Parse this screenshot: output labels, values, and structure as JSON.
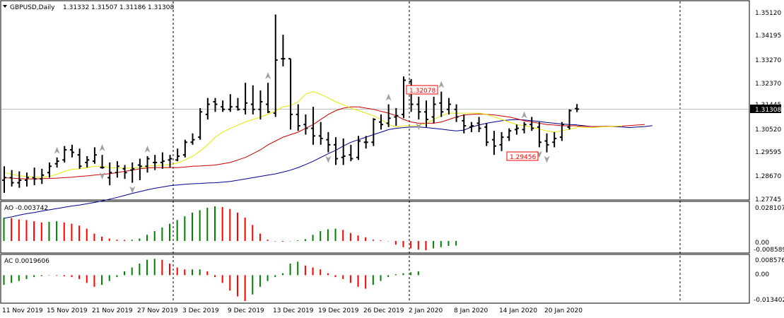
{
  "header": {
    "menu_icon": "triangle-down-icon",
    "symbol": "GBPUSD,Daily",
    "open": "1.31332",
    "high": "1.31507",
    "low": "1.31186",
    "close": "1.31308"
  },
  "price_axis": {
    "labels": [
      "1.35120",
      "1.34195",
      "1.33270",
      "1.32370",
      "1.31445",
      "1.30520",
      "1.29595",
      "1.28670",
      "1.27745"
    ],
    "current_price": "1.31308",
    "current_price_color": "#000000"
  },
  "ao_panel": {
    "label": "AO -0.003742",
    "axis_labels": [
      "0.028107",
      "0.00",
      "-0.008589"
    ],
    "up_color": "#008000",
    "down_color": "#ff0000"
  },
  "ac_panel": {
    "label": "AC 0.0019606",
    "axis_labels": [
      "0.008576",
      "0.00",
      "-0.013402"
    ],
    "up_color": "#008000",
    "down_color": "#ff0000"
  },
  "annotations": {
    "high_label": "1.32078",
    "low_label": "1.29456",
    "color": "#ff0000"
  },
  "time_axis": {
    "labels": [
      "11 Nov 2019",
      "15 Nov 2019",
      "21 Nov 2019",
      "27 Nov 2019",
      "3 Dec 2019",
      "9 Dec 2019",
      "13 Dec 2019",
      "19 Dec 2019",
      "26 Dec 2019",
      "2 Jan 2020",
      "8 Jan 2020",
      "14 Jan 2020",
      "20 Jan 2020"
    ]
  },
  "chart_data": {
    "type": "ohlc",
    "price_range": [
      1.27745,
      1.3512
    ],
    "bars": [
      {
        "o": 1.285,
        "h": 1.2905,
        "l": 1.28,
        "c": 1.286
      },
      {
        "o": 1.286,
        "h": 1.289,
        "l": 1.2825,
        "c": 1.284
      },
      {
        "o": 1.284,
        "h": 1.2885,
        "l": 1.282,
        "c": 1.285
      },
      {
        "o": 1.285,
        "h": 1.288,
        "l": 1.2825,
        "c": 1.286
      },
      {
        "o": 1.286,
        "h": 1.29,
        "l": 1.283,
        "c": 1.2855
      },
      {
        "o": 1.2855,
        "h": 1.2895,
        "l": 1.2835,
        "c": 1.287
      },
      {
        "o": 1.288,
        "h": 1.292,
        "l": 1.286,
        "c": 1.2905
      },
      {
        "o": 1.2915,
        "h": 1.294,
        "l": 1.29,
        "c": 1.2925
      },
      {
        "o": 1.293,
        "h": 1.2985,
        "l": 1.292,
        "c": 1.297
      },
      {
        "o": 1.297,
        "h": 1.299,
        "l": 1.294,
        "c": 1.296
      },
      {
        "o": 1.295,
        "h": 1.2975,
        "l": 1.2895,
        "c": 1.2905
      },
      {
        "o": 1.292,
        "h": 1.2945,
        "l": 1.29,
        "c": 1.293
      },
      {
        "o": 1.2925,
        "h": 1.298,
        "l": 1.2915,
        "c": 1.295
      },
      {
        "o": 1.29,
        "h": 1.295,
        "l": 1.2895,
        "c": 1.29
      },
      {
        "o": 1.286,
        "h": 1.292,
        "l": 1.283,
        "c": 1.288
      },
      {
        "o": 1.288,
        "h": 1.2925,
        "l": 1.286,
        "c": 1.2905
      },
      {
        "o": 1.2895,
        "h": 1.291,
        "l": 1.2855,
        "c": 1.288
      },
      {
        "o": 1.289,
        "h": 1.292,
        "l": 1.284,
        "c": 1.2895
      },
      {
        "o": 1.291,
        "h": 1.2935,
        "l": 1.285,
        "c": 1.2905
      },
      {
        "o": 1.2905,
        "h": 1.2945,
        "l": 1.288,
        "c": 1.2935
      },
      {
        "o": 1.292,
        "h": 1.295,
        "l": 1.289,
        "c": 1.292
      },
      {
        "o": 1.292,
        "h": 1.296,
        "l": 1.2895,
        "c": 1.2925
      },
      {
        "o": 1.293,
        "h": 1.295,
        "l": 1.29,
        "c": 1.2935
      },
      {
        "o": 1.293,
        "h": 1.2975,
        "l": 1.2925,
        "c": 1.2945
      },
      {
        "o": 1.295,
        "h": 1.301,
        "l": 1.294,
        "c": 1.3
      },
      {
        "o": 1.3,
        "h": 1.3035,
        "l": 1.299,
        "c": 1.301
      },
      {
        "o": 1.302,
        "h": 1.3135,
        "l": 1.301,
        "c": 1.312
      },
      {
        "o": 1.311,
        "h": 1.3175,
        "l": 1.309,
        "c": 1.315
      },
      {
        "o": 1.316,
        "h": 1.3175,
        "l": 1.312,
        "c": 1.315
      },
      {
        "o": 1.314,
        "h": 1.3165,
        "l": 1.312,
        "c": 1.313
      },
      {
        "o": 1.313,
        "h": 1.319,
        "l": 1.312,
        "c": 1.314
      },
      {
        "o": 1.314,
        "h": 1.3175,
        "l": 1.3125,
        "c": 1.313
      },
      {
        "o": 1.313,
        "h": 1.3235,
        "l": 1.311,
        "c": 1.3155
      },
      {
        "o": 1.315,
        "h": 1.3225,
        "l": 1.311,
        "c": 1.313
      },
      {
        "o": 1.313,
        "h": 1.3205,
        "l": 1.309,
        "c": 1.316
      },
      {
        "o": 1.315,
        "h": 1.3235,
        "l": 1.3115,
        "c": 1.312
      },
      {
        "o": 1.3115,
        "h": 1.3505,
        "l": 1.31,
        "c": 1.3325
      },
      {
        "o": 1.333,
        "h": 1.3425,
        "l": 1.33,
        "c": 1.333
      },
      {
        "o": 1.333,
        "h": 1.333,
        "l": 1.305,
        "c": 1.311
      },
      {
        "o": 1.311,
        "h": 1.315,
        "l": 1.3045,
        "c": 1.3065
      },
      {
        "o": 1.307,
        "h": 1.311,
        "l": 1.303,
        "c": 1.3055
      },
      {
        "o": 1.3055,
        "h": 1.314,
        "l": 1.299,
        "c": 1.3025
      },
      {
        "o": 1.3025,
        "h": 1.308,
        "l": 1.299,
        "c": 1.3015
      },
      {
        "o": 1.301,
        "h": 1.304,
        "l": 1.296,
        "c": 1.299
      },
      {
        "o": 1.299,
        "h": 1.302,
        "l": 1.291,
        "c": 1.2935
      },
      {
        "o": 1.294,
        "h": 1.3015,
        "l": 1.291,
        "c": 1.2945
      },
      {
        "o": 1.295,
        "h": 1.299,
        "l": 1.2925,
        "c": 1.2935
      },
      {
        "o": 1.294,
        "h": 1.3025,
        "l": 1.293,
        "c": 1.3005
      },
      {
        "o": 1.3,
        "h": 1.3025,
        "l": 1.2975,
        "c": 1.3
      },
      {
        "o": 1.3,
        "h": 1.3095,
        "l": 1.2985,
        "c": 1.309
      },
      {
        "o": 1.308,
        "h": 1.311,
        "l": 1.305,
        "c": 1.307
      },
      {
        "o": 1.3075,
        "h": 1.315,
        "l": 1.306,
        "c": 1.3095
      },
      {
        "o": 1.31,
        "h": 1.3135,
        "l": 1.3065,
        "c": 1.3105
      },
      {
        "o": 1.311,
        "h": 1.326,
        "l": 1.3095,
        "c": 1.3245
      },
      {
        "o": 1.324,
        "h": 1.325,
        "l": 1.312,
        "c": 1.315
      },
      {
        "o": 1.315,
        "h": 1.318,
        "l": 1.309,
        "c": 1.312
      },
      {
        "o": 1.312,
        "h": 1.3165,
        "l": 1.306,
        "c": 1.309
      },
      {
        "o": 1.31,
        "h": 1.318,
        "l": 1.3075,
        "c": 1.315
      },
      {
        "o": 1.3155,
        "h": 1.32,
        "l": 1.31,
        "c": 1.312
      },
      {
        "o": 1.313,
        "h": 1.3175,
        "l": 1.311,
        "c": 1.315
      },
      {
        "o": 1.313,
        "h": 1.315,
        "l": 1.308,
        "c": 1.31
      },
      {
        "o": 1.3085,
        "h": 1.311,
        "l": 1.3035,
        "c": 1.3065
      },
      {
        "o": 1.306,
        "h": 1.308,
        "l": 1.304,
        "c": 1.3065
      },
      {
        "o": 1.3075,
        "h": 1.31,
        "l": 1.304,
        "c": 1.3055
      },
      {
        "o": 1.306,
        "h": 1.3075,
        "l": 1.2985,
        "c": 1.3
      },
      {
        "o": 1.301,
        "h": 1.3045,
        "l": 1.295,
        "c": 1.2985
      },
      {
        "o": 1.299,
        "h": 1.304,
        "l": 1.2965,
        "c": 1.302
      },
      {
        "o": 1.302,
        "h": 1.3055,
        "l": 1.3005,
        "c": 1.3045
      },
      {
        "o": 1.305,
        "h": 1.307,
        "l": 1.303,
        "c": 1.3055
      },
      {
        "o": 1.305,
        "h": 1.308,
        "l": 1.3035,
        "c": 1.307
      },
      {
        "o": 1.307,
        "h": 1.31,
        "l": 1.3045,
        "c": 1.3055
      },
      {
        "o": 1.306,
        "h": 1.308,
        "l": 1.298,
        "c": 1.3
      },
      {
        "o": 1.3005,
        "h": 1.3035,
        "l": 1.296,
        "c": 1.299
      },
      {
        "o": 1.3,
        "h": 1.304,
        "l": 1.298,
        "c": 1.3015
      },
      {
        "o": 1.302,
        "h": 1.308,
        "l": 1.3005,
        "c": 1.307
      },
      {
        "o": 1.306,
        "h": 1.313,
        "l": 1.305,
        "c": 1.3125
      },
      {
        "o": 1.3133,
        "h": 1.3151,
        "l": 1.3119,
        "c": 1.3131
      }
    ],
    "ma_yellow": [
      1.288,
      1.2873,
      1.2867,
      1.2865,
      1.2862,
      1.2862,
      1.2865,
      1.2873,
      1.2885,
      1.2893,
      1.2895,
      1.29,
      1.2905,
      1.2905,
      1.29,
      1.2898,
      1.2897,
      1.2898,
      1.29,
      1.2905,
      1.2908,
      1.291,
      1.2912,
      1.2918,
      1.293,
      1.2945,
      1.2965,
      1.299,
      1.302,
      1.304,
      1.3055,
      1.3068,
      1.308,
      1.309,
      1.31,
      1.311,
      1.3125,
      1.314,
      1.3145,
      1.316,
      1.319,
      1.32,
      1.319,
      1.3175,
      1.316,
      1.3148,
      1.3135,
      1.3125,
      1.3115,
      1.3105,
      1.309,
      1.307,
      1.306,
      1.3065,
      1.3065,
      1.3065,
      1.3075,
      1.309,
      1.3105,
      1.3115,
      1.3115,
      1.3115,
      1.3115,
      1.3115,
      1.311,
      1.31,
      1.309,
      1.308,
      1.307,
      1.3065,
      1.306,
      1.3052,
      1.3045,
      1.304,
      1.3045,
      1.3052,
      1.3058
    ],
    "ma_red": [
      1.286,
      1.2858,
      1.2856,
      1.2855,
      1.2855,
      1.2856,
      1.2857,
      1.2858,
      1.286,
      1.2862,
      1.2865,
      1.2867,
      1.287,
      1.2873,
      1.2876,
      1.288,
      1.2885,
      1.289,
      1.2895,
      1.2898,
      1.29,
      1.29,
      1.29,
      1.29,
      1.2902,
      1.2905,
      1.2906,
      1.2908,
      1.291,
      1.2915,
      1.292,
      1.293,
      1.294,
      1.2955,
      1.297,
      1.299,
      1.3005,
      1.302,
      1.303,
      1.304,
      1.3055,
      1.307,
      1.309,
      1.311,
      1.3125,
      1.3135,
      1.314,
      1.314,
      1.3135,
      1.313,
      1.3122,
      1.3115,
      1.3105,
      1.309,
      1.308,
      1.3075,
      1.3075,
      1.3075,
      1.308,
      1.309,
      1.31,
      1.3108,
      1.311,
      1.3112,
      1.311,
      1.3108,
      1.3104,
      1.31,
      1.3093,
      1.3085,
      1.308,
      1.3075,
      1.307,
      1.3068,
      1.3065,
      1.3065,
      1.3065
    ],
    "ma_blue": [
      1.27,
      1.2705,
      1.2712,
      1.2718,
      1.2722,
      1.2728,
      1.2733,
      1.2738,
      1.2743,
      1.2748,
      1.2752,
      1.2757,
      1.2762,
      1.2768,
      1.2775,
      1.2782,
      1.279,
      1.2798,
      1.2805,
      1.2812,
      1.2818,
      1.2823,
      1.2828,
      1.2831,
      1.2834,
      1.2836,
      1.2837,
      1.2839,
      1.284,
      1.2842,
      1.2845,
      1.285,
      1.2855,
      1.286,
      1.2865,
      1.287,
      1.2875,
      1.2882,
      1.289,
      1.29,
      1.2912,
      1.2925,
      1.294,
      1.2955,
      1.2968,
      1.2985,
      1.3,
      1.301,
      1.302,
      1.303,
      1.304,
      1.305,
      1.3055,
      1.3058,
      1.306,
      1.306,
      1.3058,
      1.3055,
      1.3052,
      1.3048,
      1.3045,
      1.3048,
      1.306,
      1.3068,
      1.3075,
      1.308,
      1.3085,
      1.3088,
      1.309,
      1.3088,
      1.3085,
      1.3082,
      1.3078,
      1.3075,
      1.3072,
      1.307,
      1.3069
    ],
    "ma_tail_blue": [
      1.3068,
      1.3065,
      1.3062,
      1.3062,
      1.3063,
      1.3062,
      1.306,
      1.3058,
      1.306,
      1.3062,
      1.3066
    ],
    "ma_tail_red": [
      1.3064,
      1.3063,
      1.3062,
      1.3062,
      1.3063,
      1.3063,
      1.3064,
      1.3066,
      1.3068,
      1.307
    ],
    "ma_tail_yellow": [
      1.306,
      1.3058,
      1.3058,
      1.306,
      1.3062,
      1.3063,
      1.3064
    ],
    "ao": [
      0.019,
      0.0185,
      0.0175,
      0.017,
      0.016,
      0.015,
      0.0155,
      0.016,
      0.015,
      0.014,
      0.0125,
      0.01,
      0.006,
      0.0035,
      0.002,
      0.001,
      0.0008,
      0.001,
      0.002,
      0.005,
      0.008,
      0.011,
      0.014,
      0.017,
      0.02,
      0.023,
      0.025,
      0.027,
      0.0281,
      0.0275,
      0.026,
      0.023,
      0.019,
      0.013,
      0.006,
      0.001,
      -0.0003,
      -0.0005,
      -0.0002,
      0.0005,
      0.0015,
      0.005,
      0.008,
      0.0095,
      0.01,
      0.009,
      0.0065,
      0.0045,
      0.003,
      0.001,
      0.0005,
      -0.0002,
      -0.003,
      -0.005,
      -0.006,
      -0.007,
      -0.0075,
      -0.006,
      -0.005,
      -0.004,
      -0.0037
    ],
    "ac": [
      -0.005,
      -0.004,
      -0.003,
      -0.002,
      -0.001,
      -0.0005,
      -0.0002,
      -0.0003,
      -0.0006,
      -0.001,
      -0.002,
      -0.004,
      -0.006,
      -0.005,
      -0.003,
      -0.001,
      0.002,
      0.004,
      0.006,
      0.008,
      0.0085,
      0.008,
      0.006,
      0.004,
      0.003,
      0.003,
      0.003,
      0.002,
      -0.001,
      -0.004,
      -0.008,
      -0.011,
      -0.0134,
      -0.01,
      -0.006,
      -0.003,
      -0.001,
      0.001,
      0.006,
      0.007,
      0.005,
      0.004,
      0.003,
      0.001,
      -0.001,
      -0.002,
      -0.004,
      -0.006,
      -0.007,
      -0.005,
      -0.003,
      -0.001,
      0.0005,
      0.001,
      0.0015,
      0.002
    ]
  }
}
